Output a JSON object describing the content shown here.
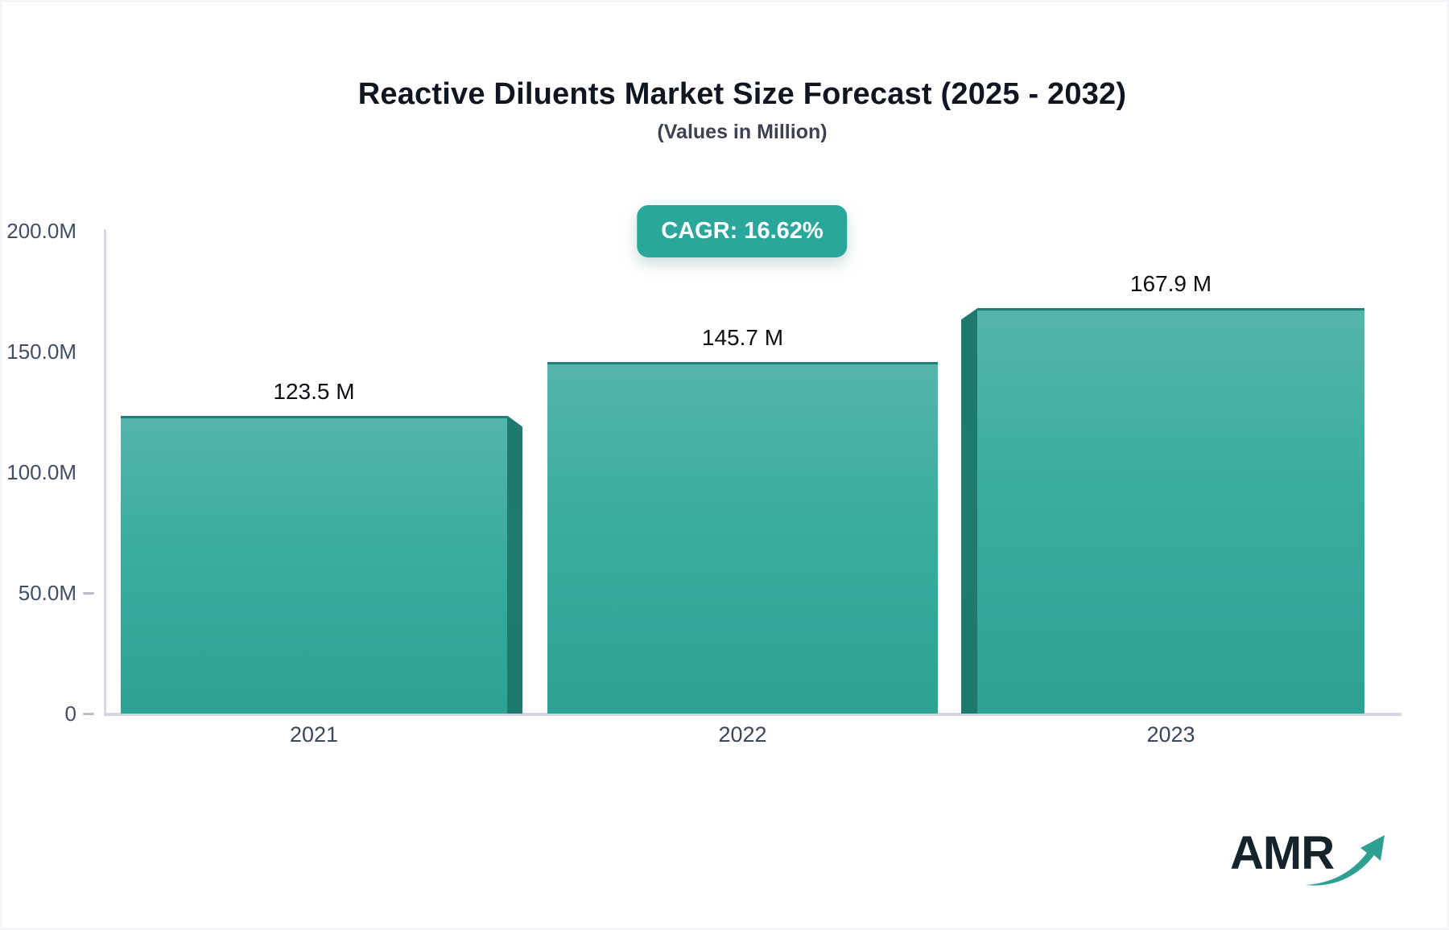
{
  "header": {
    "title": "Reactive Diluents Market Size Forecast (2025 - 2032)",
    "subtitle": "(Values in Million)",
    "cagr_label": "CAGR: 16.62%"
  },
  "chart_data": {
    "type": "bar",
    "title": "Reactive Diluents Market Size Forecast (2025 - 2032)",
    "subtitle": "(Values in Million)",
    "cagr_percent": 16.62,
    "categories": [
      "2021",
      "2022",
      "2023"
    ],
    "values": [
      123.5,
      145.7,
      167.9
    ],
    "value_labels": [
      "123.5 M",
      "145.7 M",
      "167.9 M"
    ],
    "ylim": [
      0,
      200
    ],
    "ytick_labels": [
      "200.0M",
      "150.0M",
      "100.0M",
      "50.0M",
      "0"
    ],
    "grid": false,
    "legend": false,
    "bar_style": "3d-extruded"
  },
  "branding": {
    "logo_text": "AMR"
  },
  "colors": {
    "bar_top": "#54b5ab",
    "bar_bottom": "#2ba294",
    "bar_top_edge": "#1e8076",
    "bar_side_3d": "#1f7a6e",
    "badge_bg": "#2aa69a",
    "badge_text": "#ffffff",
    "axis_line": "#d6d9e2",
    "title_text": "#10161f",
    "muted_text": "#414e63",
    "logo_text": "#15242b",
    "logo_arrow": "#2f9f94"
  }
}
